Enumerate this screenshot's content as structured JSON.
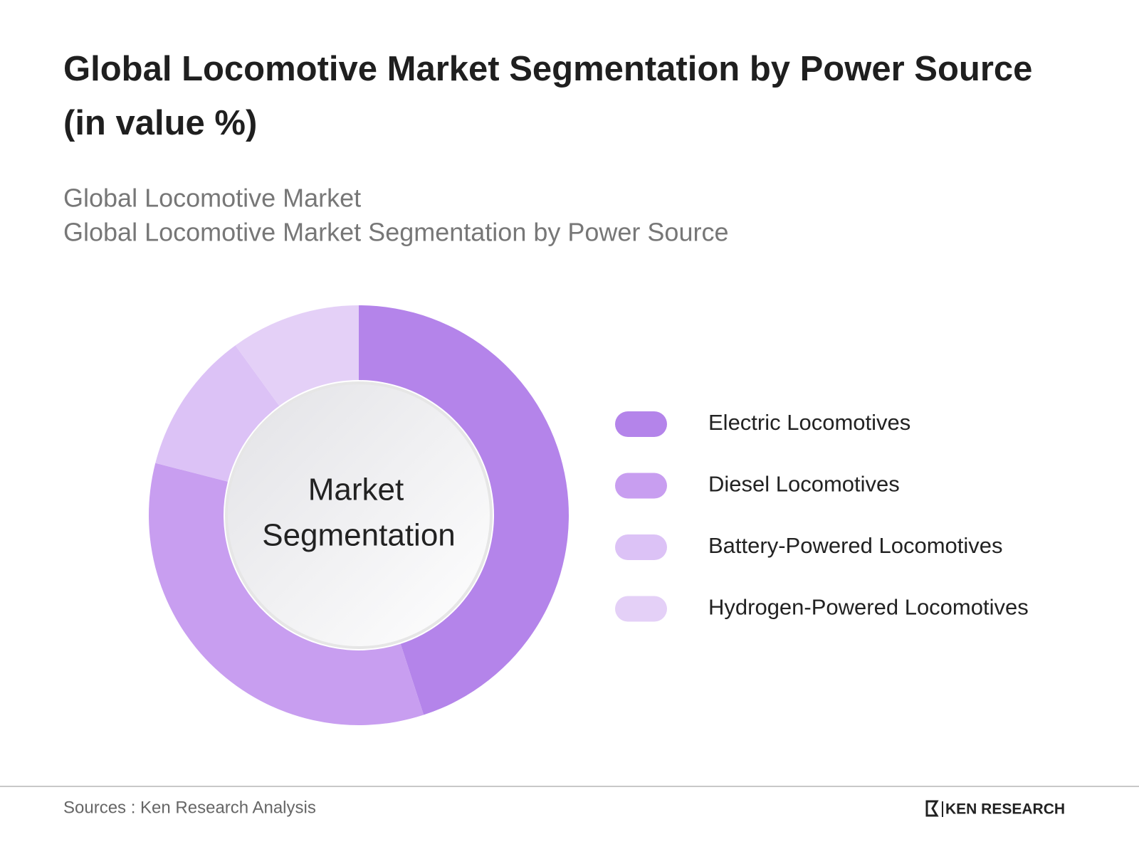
{
  "chart_data": {
    "type": "donut",
    "title": "Global Locomotive Market Segmentation by Power Source",
    "title_line2": "(in value %)",
    "subtitle": [
      "Global Locomotive Market",
      "Global Locomotive Market Segmentation by Power Source"
    ],
    "center_label": [
      "Market",
      "Segmentation"
    ],
    "categories": [
      "Electric Locomotives",
      "Diesel Locomotives",
      "Battery-Powered Locomotives",
      "Hydrogen-Powered Locomotives"
    ],
    "values": [
      45,
      34,
      11,
      10
    ],
    "colors": [
      "#b484ea",
      "#c89ef0",
      "#dcc2f6",
      "#e4d0f7"
    ],
    "legend": "right",
    "source": "Sources : Ken Research Analysis",
    "brand": "KEN RESEARCH"
  }
}
